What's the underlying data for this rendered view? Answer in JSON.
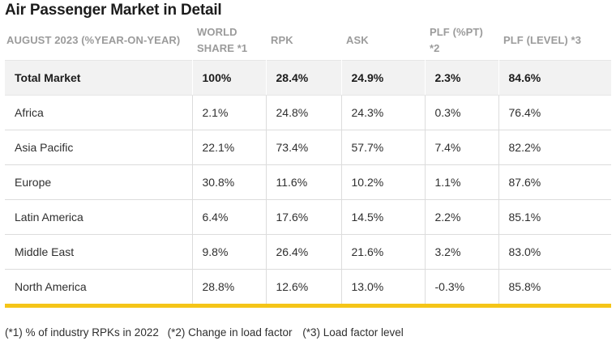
{
  "title": "Air Passenger Market in Detail",
  "columns": [
    "AUGUST 2023 (%YEAR-ON-YEAR)",
    "WORLD SHARE *1",
    "RPK",
    "ASK",
    "PLF (%PT) *2",
    "PLF (LEVEL) *3"
  ],
  "total": {
    "label": "Total Market",
    "world_share": "100%",
    "rpk": "28.4%",
    "ask": "24.9%",
    "plf_pt": "2.3%",
    "plf_level": "84.6%"
  },
  "rows": [
    {
      "region": "Africa",
      "world_share": "2.1%",
      "rpk": "24.8%",
      "ask": "24.3%",
      "plf_pt": "0.3%",
      "plf_level": "76.4%"
    },
    {
      "region": "Asia Pacific",
      "world_share": "22.1%",
      "rpk": "73.4%",
      "ask": "57.7%",
      "plf_pt": "7.4%",
      "plf_level": "82.2%"
    },
    {
      "region": "Europe",
      "world_share": "30.8%",
      "rpk": "11.6%",
      "ask": "10.2%",
      "plf_pt": "1.1%",
      "plf_level": "87.6%"
    },
    {
      "region": "Latin America",
      "world_share": "6.4%",
      "rpk": "17.6%",
      "ask": "14.5%",
      "plf_pt": "2.2%",
      "plf_level": "85.1%"
    },
    {
      "region": "Middle East",
      "world_share": "9.8%",
      "rpk": "26.4%",
      "ask": "21.6%",
      "plf_pt": "3.2%",
      "plf_level": "83.0%"
    },
    {
      "region": "North America",
      "world_share": "28.8%",
      "rpk": "12.6%",
      "ask": "13.0%",
      "plf_pt": "-0.3%",
      "plf_level": "85.8%"
    }
  ],
  "footnotes": [
    "(*1) % of industry RPKs in 2022",
    "(*2) Change in load factor",
    "(*3) Load factor level"
  ],
  "colors": {
    "accent_rule": "#f5c518",
    "header_text": "#9b9b9b",
    "total_row_bg": "#f2f2f2",
    "grid_line": "#dcdcdc"
  }
}
